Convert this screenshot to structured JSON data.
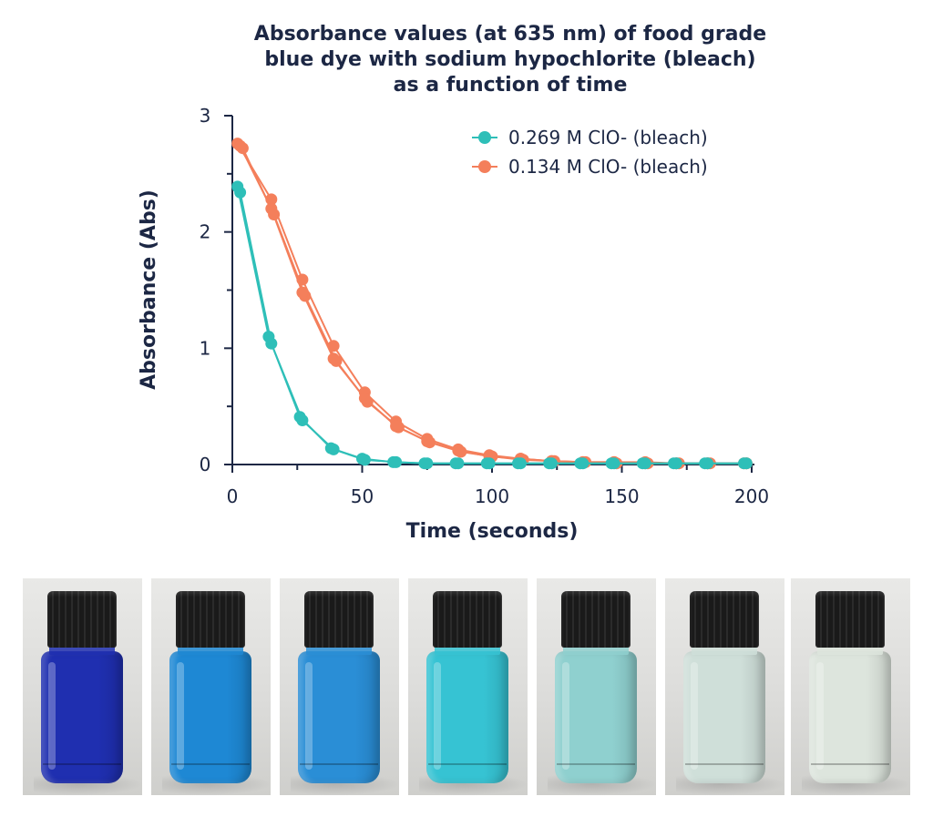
{
  "chart_data": {
    "type": "line",
    "title": "Absorbance values (at 635 nm) of food grade blue dye with sodium hypochlorite (bleach) as a function of time",
    "title_lines": [
      "Absorbance values (at 635 nm) of food grade",
      "blue dye with sodium hypochlorite (bleach)",
      "as a function of time"
    ],
    "xlabel": "Time (seconds)",
    "ylabel": "Absorbance (Abs)",
    "xlim": [
      0,
      200
    ],
    "ylim": [
      0,
      3
    ],
    "xticks": [
      "0",
      "50",
      "100",
      "150",
      "200"
    ],
    "xtick_values": [
      0,
      50,
      100,
      150,
      200
    ],
    "yticks": [
      "0",
      "1",
      "2",
      "3"
    ],
    "ytick_values": [
      0,
      1,
      2,
      3
    ],
    "grid": false,
    "legend_position": "top-right",
    "series": [
      {
        "name": "0.269 M ClO- (bleach)",
        "color": "#2ebfb8",
        "runs": [
          {
            "x": [
              2,
              14,
              26,
              38,
              50,
              62,
              74,
              86,
              98,
              110,
              122,
              134,
              146,
              158,
              170,
              182,
              197
            ],
            "y": [
              2.39,
              1.1,
              0.41,
              0.14,
              0.05,
              0.02,
              0.01,
              0.01,
              0.01,
              0.01,
              0.01,
              0.01,
              0.01,
              0.01,
              0.01,
              0.01,
              0.01
            ]
          },
          {
            "x": [
              3,
              15,
              27,
              39,
              51,
              63,
              75,
              87,
              99,
              111,
              123,
              135,
              147,
              159,
              171,
              183,
              198
            ],
            "y": [
              2.34,
              1.04,
              0.38,
              0.13,
              0.04,
              0.02,
              0.01,
              0.01,
              0.01,
              0.01,
              0.01,
              0.01,
              0.01,
              0.01,
              0.01,
              0.01,
              0.01
            ]
          }
        ]
      },
      {
        "name": "0.134 M ClO- (bleach)",
        "color": "#f47f5b",
        "runs": [
          {
            "x": [
              2,
              15,
              27,
              39,
              51,
              63,
              75,
              87,
              99,
              111,
              123,
              135,
              147,
              159,
              171,
              183,
              197
            ],
            "y": [
              2.76,
              2.28,
              1.59,
              1.02,
              0.62,
              0.37,
              0.22,
              0.13,
              0.08,
              0.05,
              0.03,
              0.02,
              0.02,
              0.02,
              0.01,
              0.01,
              0.01
            ]
          },
          {
            "x": [
              4,
              16,
              28,
              40,
              52,
              64,
              76,
              88,
              100,
              112,
              124,
              136,
              148,
              160,
              172,
              184,
              198
            ],
            "y": [
              2.72,
              2.15,
              1.45,
              0.89,
              0.54,
              0.32,
              0.19,
              0.11,
              0.07,
              0.04,
              0.03,
              0.02,
              0.01,
              0.01,
              0.01,
              0.01,
              0.01
            ]
          },
          {
            "x": [
              3,
              15,
              27,
              39,
              51,
              63,
              75,
              87,
              99,
              111,
              123,
              135,
              147,
              159,
              171,
              183,
              198
            ],
            "y": [
              2.74,
              2.2,
              1.48,
              0.91,
              0.57,
              0.33,
              0.2,
              0.12,
              0.07,
              0.05,
              0.03,
              0.02,
              0.02,
              0.01,
              0.01,
              0.01,
              0.01
            ]
          }
        ]
      }
    ]
  },
  "vials": [
    {
      "color": "#1f2fb0"
    },
    {
      "color": "#1e88d4"
    },
    {
      "color": "#2a8ed6"
    },
    {
      "color": "#36c3d3"
    },
    {
      "color": "#8fd0cf"
    },
    {
      "color": "#cfdfd9"
    },
    {
      "color": "#dde5dd"
    }
  ]
}
